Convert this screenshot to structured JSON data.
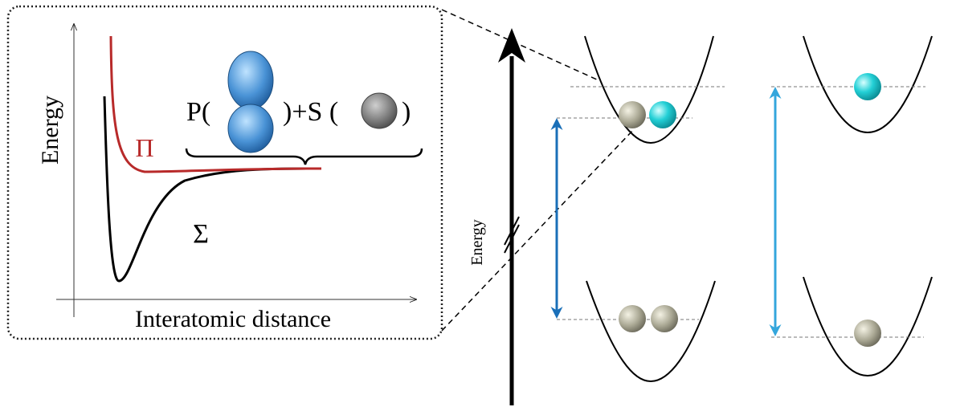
{
  "inset": {
    "y_label": "Energy",
    "x_label": "Interatomic distance",
    "pi_label": "Π",
    "sigma_label": "Σ",
    "formula_p": "P(",
    "formula_plus_s": ")+S (",
    "formula_close": ")"
  },
  "levels": {
    "energy_label": "Energy"
  }
}
